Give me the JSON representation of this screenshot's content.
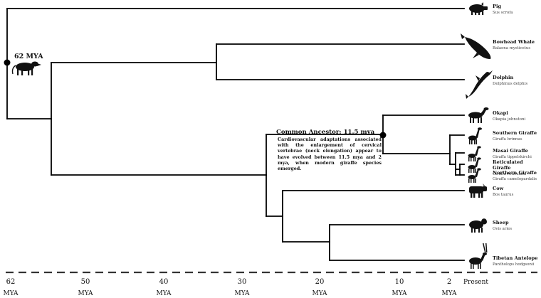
{
  "root": {
    "label": "62 MYA"
  },
  "common_ancestor": {
    "title": "Common Ancestor: 11.5 mya",
    "note": "Cardiovascular adaptations associated with the enlargement of cervical vertebrae (neck elongation) appear to have evolved between 11.5 mya and 2 mya, when modern giraffe species emerged."
  },
  "species": [
    {
      "id": "pig",
      "common": "Pig",
      "scientific": "Sus scrofa",
      "icon": "pig-icon"
    },
    {
      "id": "bowhead-whale",
      "common": "Bowhead Whale",
      "scientific": "Balaena mysticetus",
      "icon": "whale-icon"
    },
    {
      "id": "dolphin",
      "common": "Dolphin",
      "scientific": "Delphinus delphis",
      "icon": "dolphin-icon"
    },
    {
      "id": "okapi",
      "common": "Okapi",
      "scientific": "Okapia johnstoni",
      "icon": "okapi-icon"
    },
    {
      "id": "southern-giraffe",
      "common": "Southern Giraffe",
      "scientific": "Giraffa brinnus",
      "icon": "giraffe-icon"
    },
    {
      "id": "masai-giraffe",
      "common": "Masai Giraffe",
      "scientific": "Giraffa tippelskirchi",
      "icon": "giraffe-icon"
    },
    {
      "id": "reticulated-giraffe",
      "common": "Reticulated Giraffe",
      "scientific": "Giraffa reticulata",
      "icon": "giraffe-icon"
    },
    {
      "id": "northern-giraffe",
      "common": "Northern Giraffe",
      "scientific": "Giraffa camelopardalis",
      "icon": "giraffe-icon"
    },
    {
      "id": "cow",
      "common": "Cow",
      "scientific": "Bos taurus",
      "icon": "cow-icon"
    },
    {
      "id": "sheep",
      "common": "Sheep",
      "scientific": "Ovis aries",
      "icon": "sheep-icon"
    },
    {
      "id": "tibetan-antelope",
      "common": "Tibetan Antelope",
      "scientific": "Pantholops hodgsonii",
      "icon": "antelope-icon"
    }
  ],
  "timeline": {
    "ticks": [
      {
        "value": "62",
        "unit": "MYA"
      },
      {
        "value": "50",
        "unit": "MYA"
      },
      {
        "value": "40",
        "unit": "MYA"
      },
      {
        "value": "30",
        "unit": "MYA"
      },
      {
        "value": "20",
        "unit": "MYA"
      },
      {
        "value": "10",
        "unit": "MYA"
      },
      {
        "value": "2",
        "unit": "MYA"
      }
    ],
    "present": "Present"
  }
}
